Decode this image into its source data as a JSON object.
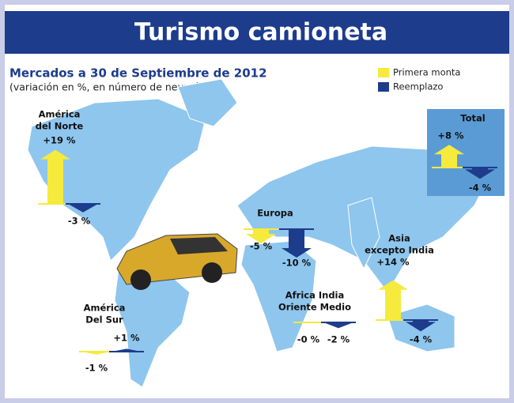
{
  "chart_data": {
    "type": "arrow-map",
    "title": "Turismo camioneta",
    "subtitle": "Mercados a 30 de Septiembre de 2012",
    "description": "(variación en %, en número de neumáticos)",
    "categories": [
      [
        "América",
        "del Norte"
      ],
      [
        "Europa"
      ],
      [
        "Asia",
        "excepto India"
      ],
      [
        "Africa India",
        "Oriente Medio"
      ],
      [
        "América",
        "Del Sur"
      ],
      [
        "Total"
      ]
    ],
    "series": [
      {
        "name": "Primera monta",
        "color": "#f6ea3c",
        "values": [
          19,
          -5,
          14,
          0,
          -1,
          8
        ],
        "value_labels": [
          "+19 %",
          "-5 %",
          "+14 %",
          "-0 %",
          "-1 %",
          "+8 %"
        ]
      },
      {
        "name": "Reemplazo",
        "color": "#1d3c8c",
        "values": [
          -3,
          -10,
          -4,
          -2,
          1,
          -4
        ],
        "value_labels": [
          "-3 %",
          "-10 %",
          "-4 %",
          "-2 %",
          "+1 %",
          "-4 %"
        ]
      }
    ]
  }
}
